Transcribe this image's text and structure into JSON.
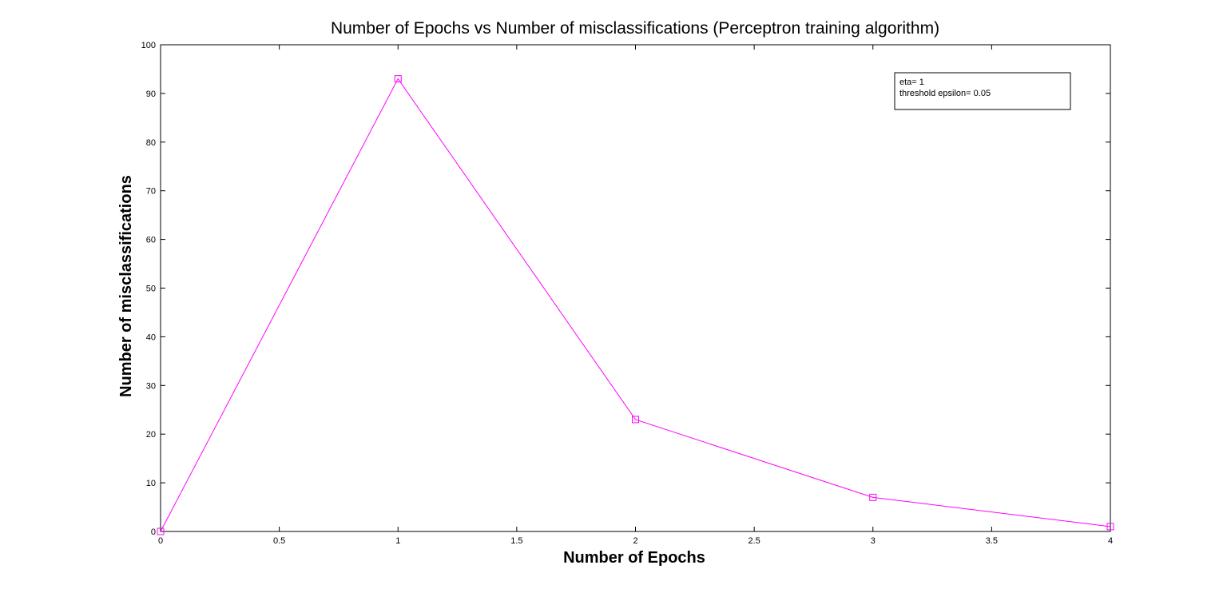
{
  "chart_data": {
    "type": "line",
    "title": "Number of Epochs vs Number of misclassifications (Perceptron training algorithm)",
    "xlabel": "Number of Epochs",
    "ylabel": "Number of misclassifications",
    "xlim": [
      0,
      4
    ],
    "ylim": [
      0,
      100
    ],
    "xticks": [
      0,
      0.5,
      1,
      1.5,
      2,
      2.5,
      3,
      3.5,
      4
    ],
    "xtick_labels": [
      "0",
      "0.5",
      "1",
      "1.5",
      "2",
      "2.5",
      "3",
      "3.5",
      "4"
    ],
    "yticks": [
      0,
      10,
      20,
      30,
      40,
      50,
      60,
      70,
      80,
      90,
      100
    ],
    "ytick_labels": [
      "0",
      "10",
      "20",
      "30",
      "40",
      "50",
      "60",
      "70",
      "80",
      "90",
      "100"
    ],
    "grid": false,
    "legend_position": "top-right",
    "legend_lines": [
      "eta= 1",
      "threshold epsilon= 0.05"
    ],
    "series": [
      {
        "x": [
          0,
          1,
          2,
          3,
          4
        ],
        "y": [
          0,
          93,
          23,
          7,
          1
        ],
        "color": "#ff00ff",
        "marker": "square"
      }
    ]
  }
}
